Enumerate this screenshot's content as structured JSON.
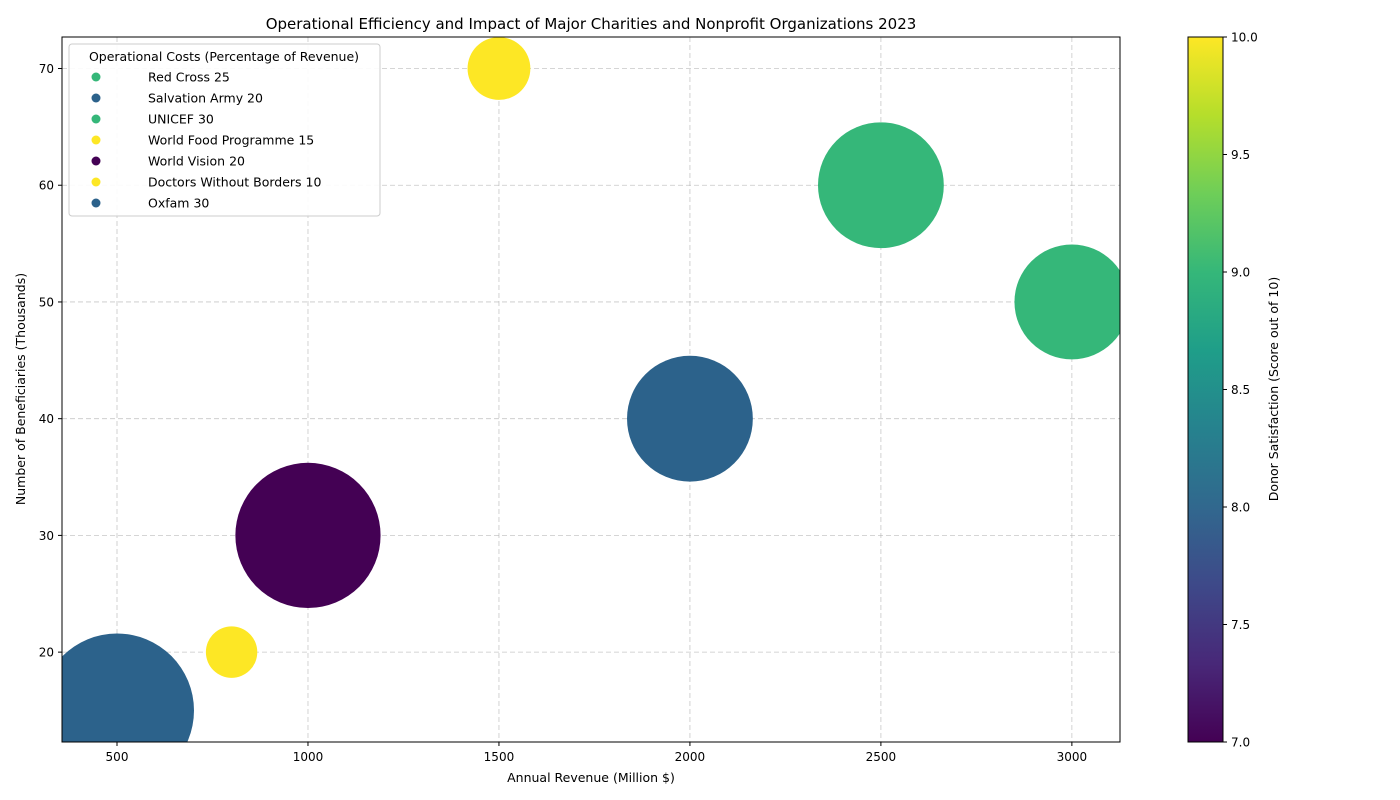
{
  "chart_data": {
    "type": "scatter",
    "title": "Operational Efficiency and Impact of Major Charities and Nonprofit Organizations 2023",
    "xlabel": "Annual Revenue (Million $)",
    "ylabel": "Number of Beneficiaries (Thousands)",
    "xlim": [
      356,
      3126
    ],
    "ylim": [
      12.3,
      72.7
    ],
    "xticks": [
      500,
      1000,
      1500,
      2000,
      2500,
      3000
    ],
    "yticks": [
      20,
      30,
      40,
      50,
      60,
      70
    ],
    "grid": true,
    "legend": {
      "title": "Operational Costs (Percentage of Revenue)",
      "placement": "top-left"
    },
    "colorbar": {
      "label": "Donor Satisfaction (Score out of 10)",
      "range": [
        7,
        10
      ],
      "ticks": [
        "7.0",
        "7.5",
        "8.0",
        "8.5",
        "9.0",
        "9.5",
        "10.0"
      ],
      "colormap": [
        "#440154",
        "#482878",
        "#3e4989",
        "#31688e",
        "#26828e",
        "#1f9e89",
        "#35b779",
        "#6ece58",
        "#b5de2b",
        "#fde725"
      ]
    },
    "points": [
      {
        "label": "Red Cross 25",
        "x": 3000,
        "y": 50,
        "satisfaction": 9,
        "operational_cost": 25,
        "color": "#35b779"
      },
      {
        "label": "Salvation Army 20",
        "x": 2000,
        "y": 40,
        "satisfaction": 8,
        "operational_cost": 20,
        "color": "#2c628b"
      },
      {
        "label": "UNICEF 30",
        "x": 2500,
        "y": 60,
        "satisfaction": 9,
        "operational_cost": 30,
        "color": "#35b779"
      },
      {
        "label": "World Food Programme 15",
        "x": 1500,
        "y": 70,
        "satisfaction": 10,
        "operational_cost": 15,
        "color": "#fde725"
      },
      {
        "label": "World Vision 20",
        "x": 1000,
        "y": 30,
        "satisfaction": 7,
        "operational_cost": 20,
        "color": "#440154"
      },
      {
        "label": "Doctors Without Borders 10",
        "x": 800,
        "y": 20,
        "satisfaction": 10,
        "operational_cost": 10,
        "color": "#fde725"
      },
      {
        "label": "Oxfam 30",
        "x": 500,
        "y": 15,
        "satisfaction": 8,
        "operational_cost": 30,
        "color": "#2c628b"
      }
    ]
  }
}
